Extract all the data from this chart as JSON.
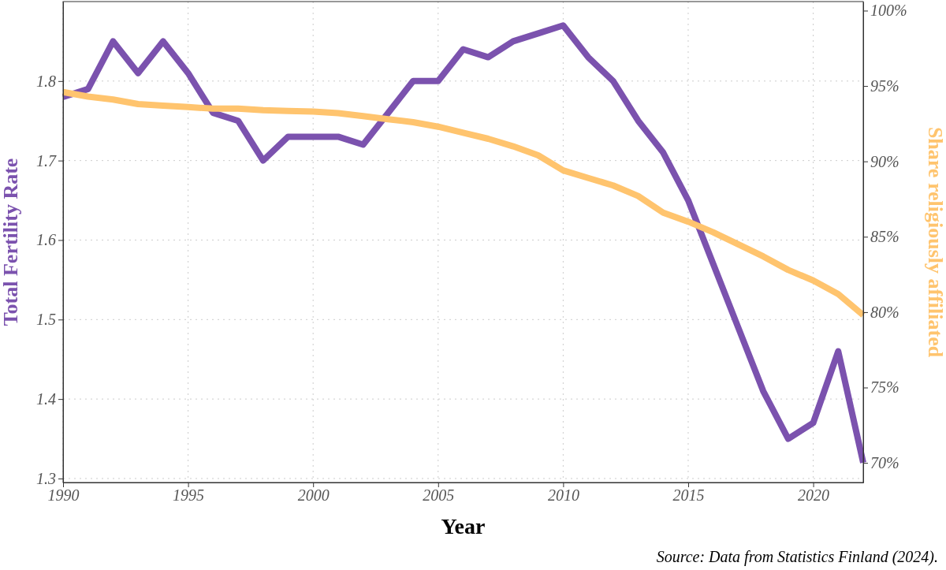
{
  "chart_data": {
    "type": "line",
    "xlabel": "Year",
    "ylabel": "Total Fertility Rate",
    "y2label": "Share religiously affiliated",
    "x": [
      1990,
      1991,
      1992,
      1993,
      1994,
      1995,
      1996,
      1997,
      1998,
      1999,
      2000,
      2001,
      2002,
      2003,
      2004,
      2005,
      2006,
      2007,
      2008,
      2009,
      2010,
      2011,
      2012,
      2013,
      2014,
      2015,
      2016,
      2017,
      2018,
      2019,
      2020,
      2021,
      2022
    ],
    "series": [
      {
        "color": "#7b52ae",
        "values": [
          1.78,
          1.79,
          1.85,
          1.81,
          1.85,
          1.81,
          1.76,
          1.75,
          1.7,
          1.73,
          1.73,
          1.73,
          1.72,
          1.76,
          1.8,
          1.8,
          1.84,
          1.83,
          1.85,
          1.86,
          1.87,
          1.83,
          1.8,
          1.75,
          1.71,
          1.65,
          1.57,
          1.49,
          1.41,
          1.35,
          1.37,
          1.46,
          1.32
        ]
      },
      {
        "color": "#ffc46e",
        "axis": "y2",
        "values": [
          94.6,
          94.3,
          94.1,
          93.8,
          93.7,
          93.6,
          93.5,
          93.5,
          93.4,
          93.35,
          93.3,
          93.2,
          93.0,
          92.8,
          92.6,
          92.3,
          91.9,
          91.5,
          91.0,
          90.4,
          89.4,
          88.9,
          88.4,
          87.7,
          86.6,
          86.0,
          85.3,
          84.5,
          83.7,
          82.8,
          82.1,
          81.2,
          79.8
        ]
      }
    ],
    "xlim": [
      1990,
      2022
    ],
    "xticks": [
      1990,
      1995,
      2000,
      2005,
      2010,
      2015,
      2020
    ],
    "ylim": [
      1.295,
      1.9
    ],
    "yticks": [
      1.3,
      1.4,
      1.5,
      1.6,
      1.7,
      1.8
    ],
    "y2lim": [
      68.7,
      100.6
    ],
    "y2ticks": [
      {
        "value": 70,
        "label": "70%"
      },
      {
        "value": 75,
        "label": "75%"
      },
      {
        "value": 80,
        "label": "80%"
      },
      {
        "value": 85,
        "label": "85%"
      },
      {
        "value": 90,
        "label": "90%"
      },
      {
        "value": 95,
        "label": "95%"
      },
      {
        "value": 100,
        "label": "100%"
      }
    ],
    "grid": true,
    "line_style": "solid",
    "annotations": [
      "Source: Data from Statistics Finland (2024)."
    ]
  }
}
